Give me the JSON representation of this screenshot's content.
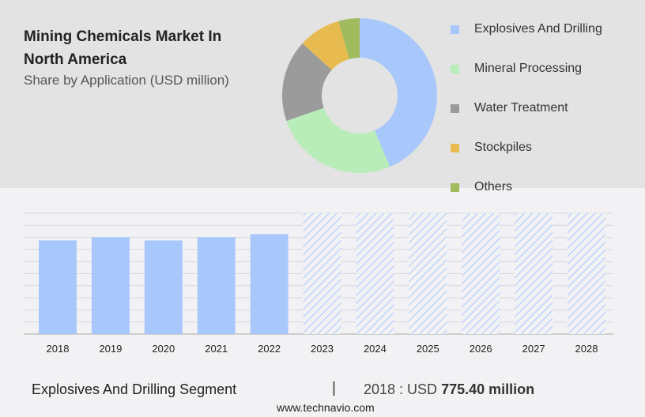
{
  "header": {
    "title": "Mining Chemicals Market In North America",
    "subtitle": "Share by Application (USD million)"
  },
  "chart_data": [
    {
      "type": "pie",
      "title": "Share by Application (USD million)",
      "labels": [
        "Explosives And Drilling",
        "Mineral Processing",
        "Water Treatment",
        "Stockpiles",
        "Others"
      ],
      "values": [
        43.6,
        26.1,
        17.1,
        8.8,
        4.4
      ],
      "colors": [
        "#a8c8fc",
        "#b8ecb8",
        "#9b9b9b",
        "#e8bb50",
        "#9fbb5e"
      ],
      "legend": "right"
    },
    {
      "type": "bar",
      "categories": [
        "2018",
        "2019",
        "2020",
        "2021",
        "2022",
        "2023",
        "2024",
        "2025",
        "2026",
        "2027",
        "2028"
      ],
      "values": [
        775.4,
        802,
        775,
        802,
        828,
        null,
        null,
        null,
        null,
        null,
        null
      ],
      "forecast": [
        false,
        false,
        false,
        false,
        false,
        true,
        true,
        true,
        true,
        true,
        true
      ],
      "ylim": [
        0,
        1000
      ],
      "grid": true,
      "color": "#a8c8fc"
    }
  ],
  "footer": {
    "segment": "Explosives And Drilling Segment",
    "separator": "|",
    "year_label": "2018 : USD",
    "value": "775.40 million",
    "site": "www.technavio.com"
  }
}
